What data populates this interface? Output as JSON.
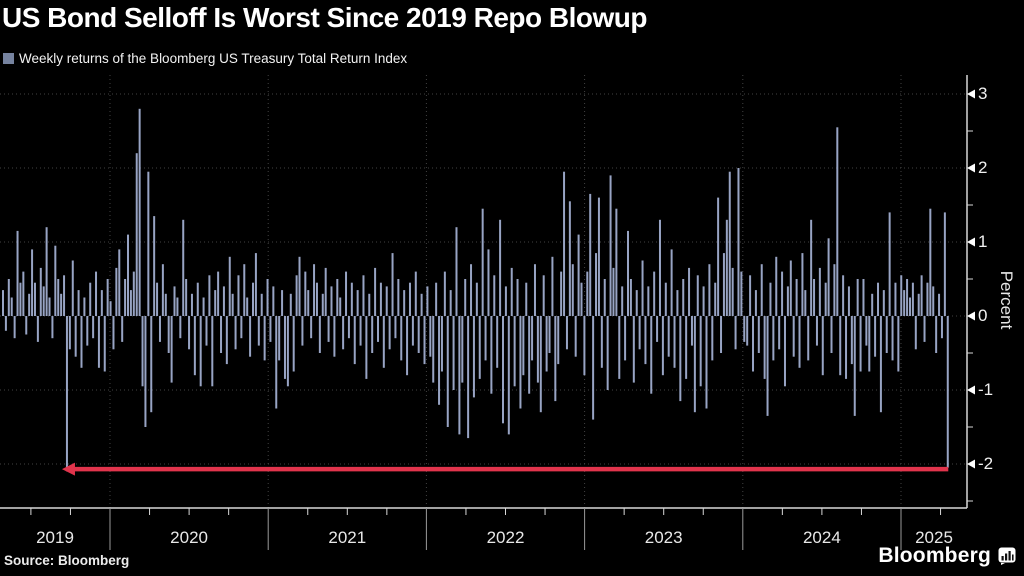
{
  "page": {
    "title": "US Bond Selloff Is Worst Since 2019 Repo Blowup"
  },
  "legend": {
    "label": "Weekly returns of the Bloomberg US Treasury Total Return Index",
    "swatch_color": "#76839f"
  },
  "footer": {
    "source": "Source: Bloomberg",
    "brand": "Bloomberg"
  },
  "chart_data": {
    "type": "bar",
    "title": "US Bond Selloff Is Worst Since 2019 Repo Blowup",
    "series_name": "Weekly returns of the Bloomberg US Treasury Total Return Index",
    "ylabel": "Percent",
    "xlabel": "",
    "frequency": "weekly",
    "x_range": "Apr 2019 - Apr 2025",
    "categories": [
      "2019",
      "2020",
      "2021",
      "2022",
      "2023",
      "2024",
      "2025"
    ],
    "yticks": [
      3,
      2,
      1,
      0,
      -1,
      -2
    ],
    "ylim": [
      -2.6,
      3.25
    ],
    "grid": true,
    "legend_position": "top-left",
    "bar_color": "#98a4c4",
    "axis_color": "#d8d8d8",
    "grid_color": "#424242",
    "values": [
      0.35,
      -0.2,
      0.5,
      0.25,
      -0.3,
      1.15,
      0.45,
      0.6,
      -0.25,
      0.3,
      0.9,
      0.45,
      -0.35,
      0.65,
      0.4,
      1.2,
      0.25,
      -0.3,
      0.95,
      0.5,
      0.3,
      0.55,
      -2.1,
      -0.45,
      0.75,
      -0.55,
      0.35,
      -0.7,
      0.25,
      -0.4,
      0.45,
      -0.3,
      0.6,
      -0.7,
      0.35,
      -0.75,
      0.5,
      0.2,
      -0.45,
      0.65,
      0.9,
      -0.35,
      0.5,
      1.1,
      0.35,
      0.6,
      2.2,
      2.8,
      -0.95,
      -1.5,
      1.95,
      -1.3,
      1.35,
      0.45,
      -0.35,
      0.7,
      0.3,
      -0.5,
      -0.9,
      0.4,
      0.25,
      -0.3,
      1.3,
      0.5,
      -0.45,
      0.3,
      -0.8,
      0.45,
      -0.95,
      0.25,
      -0.4,
      0.55,
      -0.95,
      0.35,
      0.6,
      -0.5,
      0.4,
      -0.65,
      0.8,
      0.3,
      -0.45,
      0.55,
      -0.3,
      0.7,
      0.25,
      -0.55,
      0.45,
      0.85,
      -0.4,
      0.3,
      -0.6,
      0.5,
      -0.35,
      0.4,
      -1.25,
      -0.6,
      0.35,
      -0.85,
      -0.95,
      0.3,
      -0.75,
      0.55,
      0.8,
      -0.4,
      0.6,
      0.35,
      -0.3,
      0.7,
      0.45,
      -0.5,
      0.3,
      0.65,
      -0.35,
      0.4,
      -0.55,
      0.5,
      0.25,
      -0.45,
      0.6,
      -0.3,
      0.45,
      -0.65,
      0.35,
      -0.4,
      0.55,
      -0.85,
      0.3,
      -0.5,
      0.65,
      -0.35,
      0.45,
      -0.7,
      0.4,
      -0.45,
      0.85,
      -0.3,
      0.5,
      -0.6,
      0.35,
      -0.8,
      0.45,
      -0.4,
      0.6,
      -0.5,
      0.3,
      -0.65,
      0.4,
      -0.55,
      -0.9,
      0.45,
      -1.2,
      -0.75,
      0.6,
      -1.5,
      0.35,
      -1.0,
      1.2,
      -1.6,
      -0.9,
      0.5,
      -1.65,
      0.7,
      -1.1,
      0.45,
      -0.85,
      1.45,
      -0.6,
      0.9,
      -1.05,
      0.55,
      -0.7,
      1.3,
      -1.45,
      0.4,
      -1.6,
      0.65,
      -0.95,
      0.5,
      -1.25,
      -0.8,
      0.45,
      -1.05,
      -0.6,
      0.7,
      -0.9,
      -1.3,
      0.55,
      -0.75,
      -0.5,
      0.8,
      -1.15,
      -0.65,
      0.6,
      1.95,
      -0.45,
      1.55,
      0.7,
      -0.55,
      1.1,
      0.45,
      -0.8,
      0.6,
      1.65,
      -1.4,
      0.85,
      1.6,
      -0.7,
      0.5,
      -1.0,
      1.9,
      0.65,
      1.45,
      -0.85,
      0.4,
      -0.6,
      1.15,
      0.5,
      -0.9,
      0.35,
      -0.45,
      0.75,
      -0.65,
      0.4,
      -1.05,
      0.6,
      -0.35,
      1.3,
      -0.8,
      0.45,
      -0.55,
      0.9,
      -0.7,
      0.35,
      -1.15,
      0.5,
      -0.85,
      0.65,
      -0.4,
      -1.3,
      0.55,
      -0.95,
      0.4,
      -1.25,
      0.7,
      -0.6,
      0.45,
      1.6,
      -0.5,
      0.85,
      1.3,
      1.95,
      0.65,
      -0.45,
      2.0,
      0.6,
      -0.35,
      -0.4,
      0.55,
      -0.75,
      0.35,
      -0.5,
      0.7,
      -0.85,
      -1.35,
      0.45,
      -0.6,
      0.8,
      -0.45,
      0.6,
      -0.95,
      0.4,
      0.75,
      -0.55,
      0.5,
      -0.7,
      0.85,
      0.35,
      -0.6,
      1.3,
      0.5,
      -0.4,
      0.65,
      -0.8,
      0.45,
      1.05,
      -0.5,
      0.7,
      2.55,
      -0.8,
      0.55,
      -0.85,
      0.4,
      -0.65,
      -1.35,
      0.5,
      -0.75,
      0.5,
      -0.4,
      -0.75,
      0.3,
      -0.55,
      0.45,
      -1.3,
      0.35,
      -0.5,
      1.4,
      -0.6,
      0.45,
      -0.75,
      0.55,
      0.35,
      0.5,
      0.25,
      0.45,
      -0.45,
      0.3,
      0.55,
      -0.35,
      0.45,
      1.45,
      0.4,
      -0.5,
      0.3,
      -0.3,
      1.4,
      -2.05
    ],
    "key_points": {
      "repo_blowup_sep_2019": {
        "index": 22,
        "value": -2.1
      },
      "covid_rally_mar_2020": {
        "index": 47,
        "value": 2.8
      },
      "aug_2024_spike": {
        "index": 287,
        "value": 2.55
      },
      "latest_week_2025_selloff": {
        "index": 325,
        "value": -2.05
      }
    },
    "annotation": {
      "type": "horizontal-arrow",
      "y": -2.07,
      "from_index": 325,
      "to_index": 22,
      "direction": "left",
      "color": "#e1344c",
      "meaning": "current selloff matches 2019 repo blowup low"
    }
  }
}
